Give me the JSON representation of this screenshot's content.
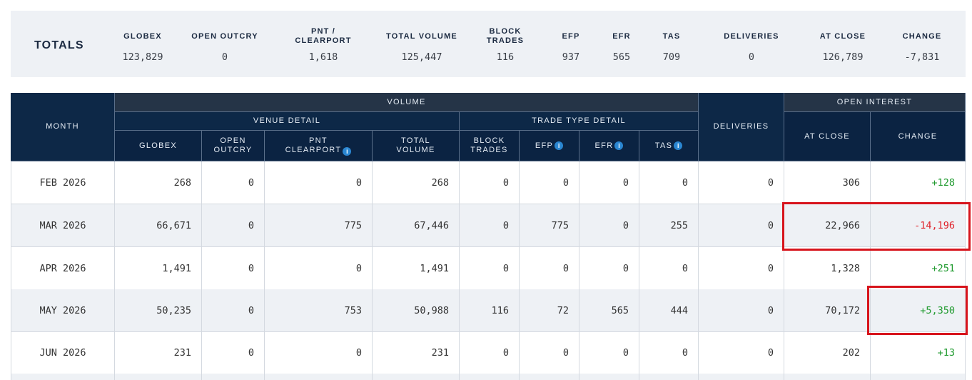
{
  "totals": {
    "label": "TOTALS",
    "columns": [
      {
        "header": "GLOBEX",
        "value": "123,829"
      },
      {
        "header": "OPEN OUTCRY",
        "value": "0"
      },
      {
        "header": "PNT / CLEARPORT",
        "value": "1,618"
      },
      {
        "header": "TOTAL VOLUME",
        "value": "125,447"
      },
      {
        "header": "BLOCK TRADES",
        "value": "116"
      },
      {
        "header": "EFP",
        "value": "937"
      },
      {
        "header": "EFR",
        "value": "565"
      },
      {
        "header": "TAS",
        "value": "709"
      },
      {
        "header": "DELIVERIES",
        "value": "0"
      },
      {
        "header": "AT CLOSE",
        "value": "126,789"
      },
      {
        "header": "CHANGE",
        "value": "-7,831"
      }
    ]
  },
  "table": {
    "group_headers": {
      "month": "MONTH",
      "volume": "VOLUME",
      "venue_detail": "VENUE DETAIL",
      "trade_type_detail": "TRADE TYPE DETAIL",
      "deliveries": "DELIVERIES",
      "open_interest": "OPEN INTEREST"
    },
    "sub_headers": {
      "globex": "GLOBEX",
      "open_outcry": "OPEN OUTCRY",
      "pnt_clearport": "PNT CLEARPORT",
      "total_volume": "TOTAL VOLUME",
      "block_trades": "BLOCK TRADES",
      "efp": "EFP",
      "efr": "EFR",
      "tas": "TAS",
      "at_close": "AT CLOSE",
      "change": "CHANGE"
    },
    "info_glyph": "i",
    "rows": [
      {
        "month": "FEB 2026",
        "globex": "268",
        "open_outcry": "0",
        "pnt": "0",
        "total": "268",
        "block": "0",
        "efp": "0",
        "efr": "0",
        "tas": "0",
        "deliveries": "0",
        "at_close": "306",
        "change": "+128"
      },
      {
        "month": "MAR 2026",
        "globex": "66,671",
        "open_outcry": "0",
        "pnt": "775",
        "total": "67,446",
        "block": "0",
        "efp": "775",
        "efr": "0",
        "tas": "255",
        "deliveries": "0",
        "at_close": "22,966",
        "change": "-14,196"
      },
      {
        "month": "APR 2026",
        "globex": "1,491",
        "open_outcry": "0",
        "pnt": "0",
        "total": "1,491",
        "block": "0",
        "efp": "0",
        "efr": "0",
        "tas": "0",
        "deliveries": "0",
        "at_close": "1,328",
        "change": "+251"
      },
      {
        "month": "MAY 2026",
        "globex": "50,235",
        "open_outcry": "0",
        "pnt": "753",
        "total": "50,988",
        "block": "116",
        "efp": "72",
        "efr": "565",
        "tas": "444",
        "deliveries": "0",
        "at_close": "70,172",
        "change": "+5,350"
      },
      {
        "month": "JUN 2026",
        "globex": "231",
        "open_outcry": "0",
        "pnt": "0",
        "total": "231",
        "block": "0",
        "efp": "0",
        "efr": "0",
        "tas": "0",
        "deliveries": "0",
        "at_close": "202",
        "change": "+13"
      }
    ]
  },
  "colors": {
    "header_navy": "#0d2847",
    "group_header": "#253447",
    "positive": "#1f9a2e",
    "negative": "#e0222a",
    "highlight_box": "#d7141c",
    "info_icon": "#2a86d1"
  }
}
